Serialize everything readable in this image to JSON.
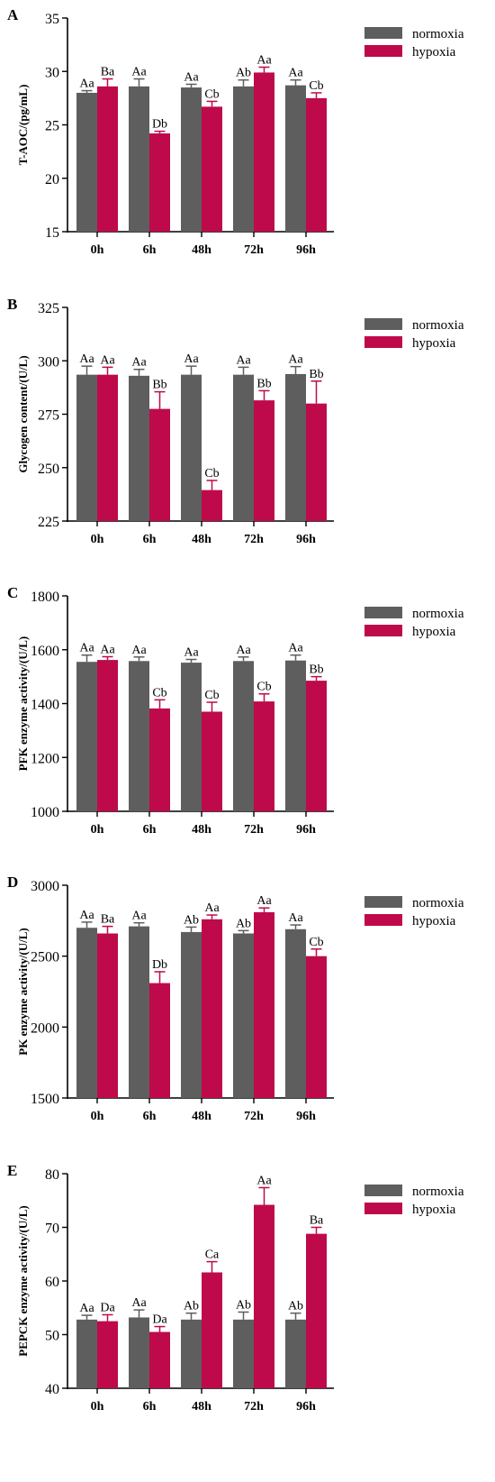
{
  "colors": {
    "normoxia": "#5e5e5e",
    "hypoxia": "#be0a4a",
    "axis": "#000000"
  },
  "legend": {
    "labels": [
      "normoxia",
      "hypoxia"
    ],
    "position": "top-right"
  },
  "chart_data": [
    {
      "type": "bar",
      "panel_label": "A",
      "ylabel": "T-AOC/(pg/mL)",
      "ylim": [
        15,
        35
      ],
      "yticks": [
        "15",
        "20",
        "25",
        "30",
        "35"
      ],
      "categories": [
        "0h",
        "6h",
        "48h",
        "72h",
        "96h"
      ],
      "series": [
        {
          "name": "normoxia",
          "values": [
            28.0,
            28.6,
            28.5,
            28.6,
            28.7
          ],
          "errors": [
            0.2,
            0.7,
            0.3,
            0.6,
            0.5
          ],
          "labels": [
            "Aa",
            "Aa",
            "Aa",
            "Ab",
            "Aa"
          ]
        },
        {
          "name": "hypoxia",
          "values": [
            28.6,
            24.2,
            26.7,
            29.9,
            27.5
          ],
          "errors": [
            0.7,
            0.2,
            0.5,
            0.5,
            0.5
          ],
          "labels": [
            "Ba",
            "Db",
            "Cb",
            "Aa",
            "Cb"
          ]
        }
      ]
    },
    {
      "type": "bar",
      "panel_label": "B",
      "ylabel": "Glycogen content/(U/L)",
      "ylim": [
        225,
        325
      ],
      "yticks": [
        "225",
        "250",
        "275",
        "300",
        "325"
      ],
      "categories": [
        "0h",
        "6h",
        "48h",
        "72h",
        "96h"
      ],
      "series": [
        {
          "name": "normoxia",
          "values": [
            293.5,
            293.0,
            293.5,
            293.5,
            293.8
          ],
          "errors": [
            4,
            3,
            4,
            3.5,
            3.5
          ],
          "labels": [
            "Aa",
            "Aa",
            "Aa",
            "Aa",
            "Aa"
          ]
        },
        {
          "name": "hypoxia",
          "values": [
            293.5,
            277.5,
            239.5,
            281.5,
            280.0
          ],
          "errors": [
            3.5,
            8,
            4.5,
            4.5,
            10.5
          ],
          "labels": [
            "Aa",
            "Bb",
            "Cb",
            "Bb",
            "Bb"
          ]
        }
      ]
    },
    {
      "type": "bar",
      "panel_label": "C",
      "ylabel": "PFK enzyme activity/(U/L)",
      "ylim": [
        1000,
        1800
      ],
      "yticks": [
        "1000",
        "1200",
        "1400",
        "1600",
        "1800"
      ],
      "categories": [
        "0h",
        "6h",
        "48h",
        "72h",
        "96h"
      ],
      "series": [
        {
          "name": "normoxia",
          "values": [
            1555,
            1558,
            1552,
            1558,
            1560
          ],
          "errors": [
            25,
            15,
            12,
            15,
            20
          ],
          "labels": [
            "Aa",
            "Aa",
            "Aa",
            "Aa",
            "Aa"
          ]
        },
        {
          "name": "hypoxia",
          "values": [
            1562,
            1382,
            1370,
            1408,
            1485
          ],
          "errors": [
            12,
            32,
            35,
            28,
            15
          ],
          "labels": [
            "Aa",
            "Cb",
            "Cb",
            "Cb",
            "Bb"
          ]
        }
      ]
    },
    {
      "type": "bar",
      "panel_label": "D",
      "ylabel": "PK enzyme activity/(U/L)",
      "ylim": [
        1500,
        3000
      ],
      "yticks": [
        "1500",
        "2000",
        "2500",
        "3000"
      ],
      "categories": [
        "0h",
        "6h",
        "48h",
        "72h",
        "96h"
      ],
      "series": [
        {
          "name": "normoxia",
          "values": [
            2700,
            2710,
            2670,
            2660,
            2690
          ],
          "errors": [
            40,
            25,
            35,
            20,
            30
          ],
          "labels": [
            "Aa",
            "Aa",
            "Ab",
            "Ab",
            "Aa"
          ]
        },
        {
          "name": "hypoxia",
          "values": [
            2660,
            2310,
            2760,
            2810,
            2500
          ],
          "errors": [
            50,
            80,
            30,
            30,
            50
          ],
          "labels": [
            "Ba",
            "Db",
            "Aa",
            "Aa",
            "Cb"
          ]
        }
      ]
    },
    {
      "type": "bar",
      "panel_label": "E",
      "ylabel": "PEPCK enzyme activity/(U/L)",
      "ylim": [
        40,
        80
      ],
      "yticks": [
        "40",
        "50",
        "60",
        "70",
        "80"
      ],
      "categories": [
        "0h",
        "6h",
        "48h",
        "72h",
        "96h"
      ],
      "series": [
        {
          "name": "normoxia",
          "values": [
            52.8,
            53.2,
            52.8,
            52.8,
            52.8
          ],
          "errors": [
            0.8,
            1.4,
            1.2,
            1.4,
            1.2
          ],
          "labels": [
            "Aa",
            "Aa",
            "Ab",
            "Ab",
            "Ab"
          ]
        },
        {
          "name": "hypoxia",
          "values": [
            52.5,
            50.5,
            61.6,
            74.2,
            68.8
          ],
          "errors": [
            1.2,
            1.0,
            2.0,
            3.2,
            1.2
          ],
          "labels": [
            "Da",
            "Da",
            "Ca",
            "Aa",
            "Ba"
          ]
        }
      ]
    }
  ]
}
